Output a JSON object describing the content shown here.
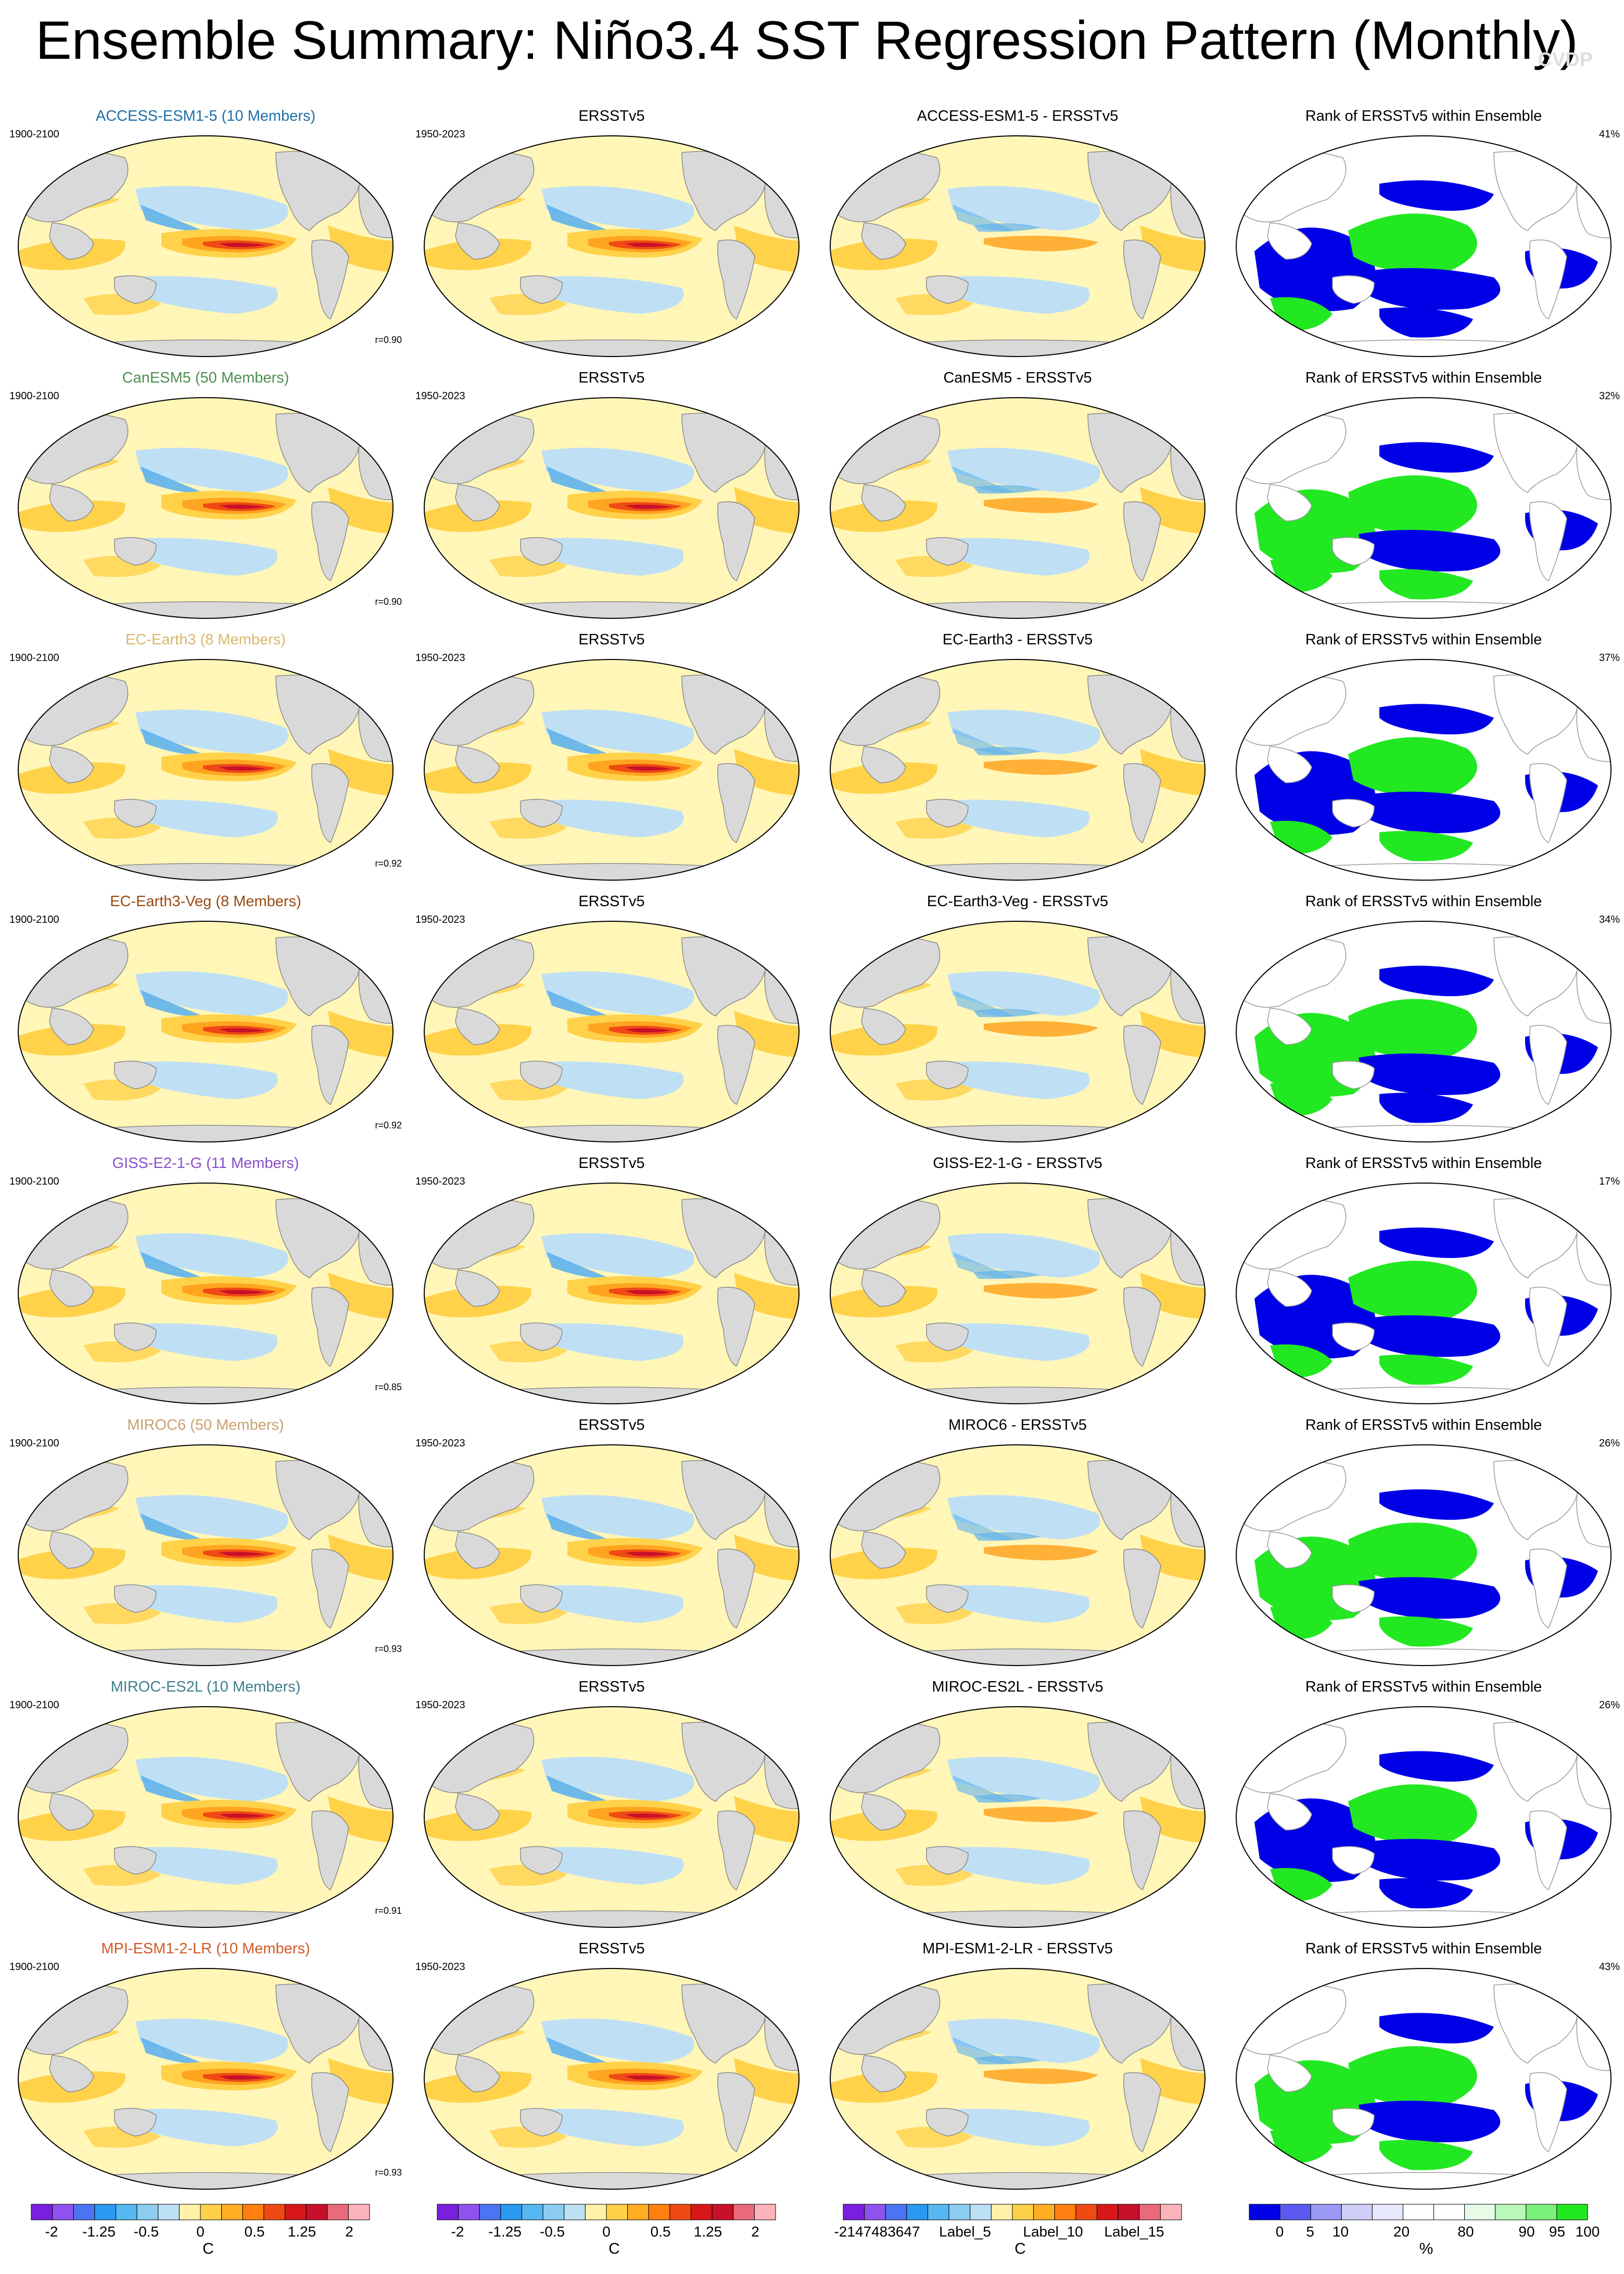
{
  "title": "Ensemble Summary: Niño3.4 SST Regression Pattern (Monthly)",
  "watermark": "CVDP",
  "obs_name": "ERSSTv5",
  "obs_period": "1950-2023",
  "model_period": "1900-2100",
  "rank_title": "Rank of ERSSTv5 within Ensemble",
  "rows": [
    {
      "model_title": "ACCESS-ESM1-5 (10 Members)",
      "model_color": "#1f6fa8",
      "diff_title": "ACCESS-ESM1-5 - ERSSTv5",
      "r": "r=0.90",
      "rank_pct": "41%"
    },
    {
      "model_title": "CanESM5 (50 Members)",
      "model_color": "#4f8f4f",
      "diff_title": "CanESM5 - ERSSTv5",
      "r": "r=0.90",
      "rank_pct": "32%"
    },
    {
      "model_title": "EC-Earth3 (8 Members)",
      "model_color": "#d9b86a",
      "diff_title": "EC-Earth3 - ERSSTv5",
      "r": "r=0.92",
      "rank_pct": "37%"
    },
    {
      "model_title": "EC-Earth3-Veg (8 Members)",
      "model_color": "#9a4a12",
      "diff_title": "EC-Earth3-Veg - ERSSTv5",
      "r": "r=0.92",
      "rank_pct": "34%"
    },
    {
      "model_title": "GISS-E2-1-G (11 Members)",
      "model_color": "#8a4fc8",
      "diff_title": "GISS-E2-1-G - ERSSTv5",
      "r": "r=0.85",
      "rank_pct": "17%"
    },
    {
      "model_title": "MIROC6 (50 Members)",
      "model_color": "#c8a070",
      "diff_title": "MIROC6 - ERSSTv5",
      "r": "r=0.93",
      "rank_pct": "26%"
    },
    {
      "model_title": "MIROC-ES2L (10 Members)",
      "model_color": "#3f7f8f",
      "diff_title": "MIROC-ES2L - ERSSTv5",
      "r": "r=0.91",
      "rank_pct": "26%"
    },
    {
      "model_title": "MPI-ESM1-2-LR (10 Members)",
      "model_color": "#d05a28",
      "diff_title": "MPI-ESM1-2-LR - ERSSTv5",
      "r": "r=0.93",
      "rank_pct": "43%"
    }
  ],
  "colorbars": {
    "regression": {
      "labels": [
        "-2",
        "-1.25",
        "-0.5",
        "0",
        "0.5",
        "1.25",
        "2"
      ],
      "unit": "C",
      "colors": [
        "#7a1ee0",
        "#8f52ee",
        "#4a74f4",
        "#2a9af0",
        "#56b8f2",
        "#8ecdf2",
        "#bde1f4",
        "#fff2a8",
        "#ffd04a",
        "#ffae24",
        "#ff7f10",
        "#ef4a14",
        "#d81818",
        "#c8102a",
        "#e96a7a",
        "#fbb4bc"
      ]
    },
    "difference": {
      "labels": [
        "-2147483647",
        "Label_5",
        "Label_10",
        "Label_15"
      ],
      "unit": "C",
      "colors": [
        "#7a1ee0",
        "#8f52ee",
        "#4a74f4",
        "#2a9af0",
        "#56b8f2",
        "#8ecdf2",
        "#bde1f4",
        "#fff2a8",
        "#ffd04a",
        "#ffae24",
        "#ff7f10",
        "#ef4a14",
        "#d81818",
        "#c8102a",
        "#e96a7a",
        "#fbb4bc"
      ]
    },
    "rank": {
      "labels": [
        "0",
        "5",
        "10",
        "20",
        "80",
        "90",
        "95",
        "100"
      ],
      "unit": "%",
      "colors": [
        "#0000e6",
        "#5a5af0",
        "#9a9af4",
        "#cfcff8",
        "#e8e8fc",
        "#ffffff",
        "#ffffff",
        "#e6fce6",
        "#b8f8b8",
        "#7af07a",
        "#22e822"
      ]
    }
  },
  "palette": {
    "land": "#d9d9d9",
    "ocean_neutral": "#fff6b8",
    "cool": "#bfe0f4",
    "cool2": "#5fb2ee",
    "warm": "#ffd24a",
    "warm2": "#ffa420",
    "hot": "#ef4a14",
    "core": "#c8102a",
    "rank_low": "#0000e6",
    "rank_high": "#22e822"
  }
}
